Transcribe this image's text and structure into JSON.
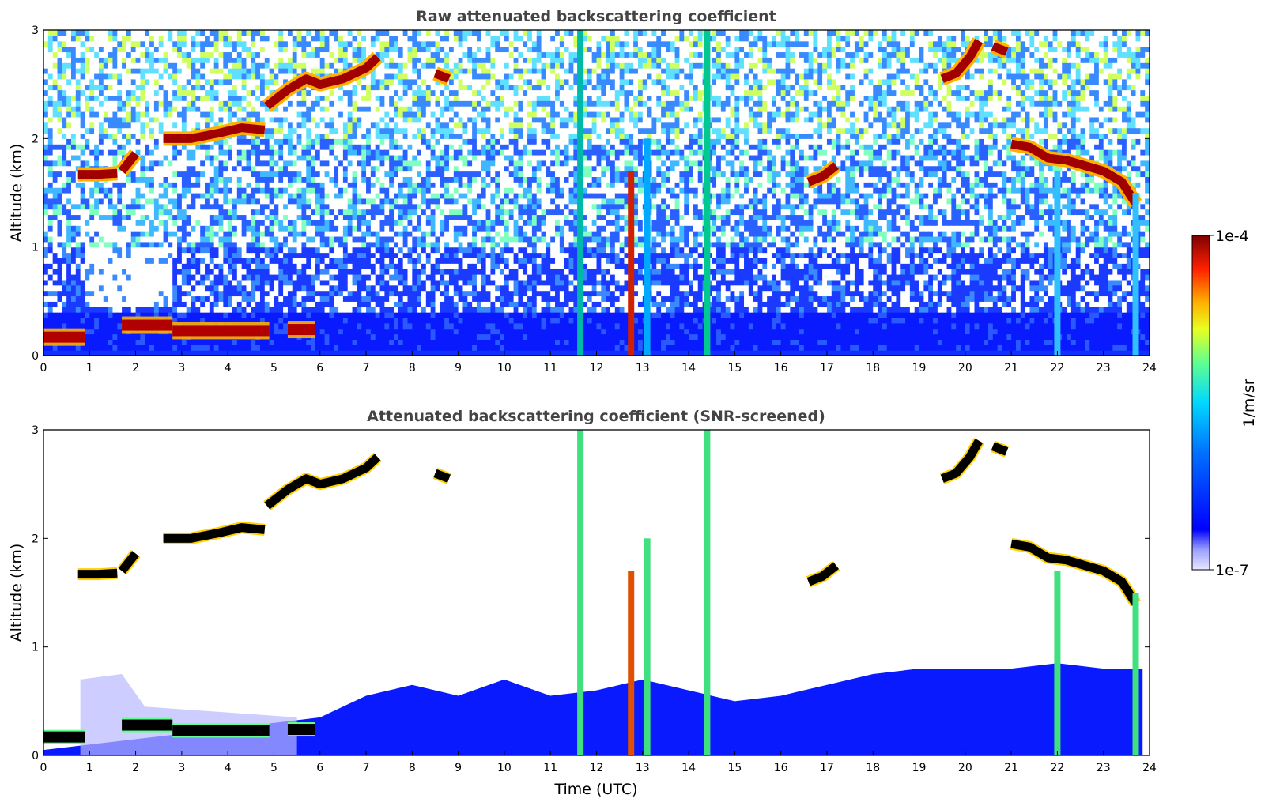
{
  "chart_data": [
    {
      "type": "heatmap",
      "title": "Raw attenuated backscattering coefficient",
      "xlabel": "",
      "ylabel": "Altitude (km)",
      "xlim": [
        0,
        24
      ],
      "ylim": [
        0,
        3
      ],
      "x_ticks": [
        "0",
        "1",
        "2",
        "3",
        "4",
        "5",
        "6",
        "7",
        "8",
        "9",
        "10",
        "11",
        "12",
        "13",
        "14",
        "15",
        "16",
        "17",
        "18",
        "19",
        "20",
        "21",
        "22",
        "23",
        "24"
      ],
      "y_ticks": [
        "0",
        "1",
        "2",
        "3"
      ],
      "background": "noise",
      "surface_layer": {
        "segments": [
          {
            "t0": 0.0,
            "t1": 0.9,
            "alt": 0.17
          },
          {
            "t0": 1.7,
            "t1": 2.8,
            "alt": 0.28
          },
          {
            "t0": 2.8,
            "t1": 4.9,
            "alt": 0.23
          },
          {
            "t0": 5.3,
            "t1": 5.9,
            "alt": 0.24
          }
        ]
      },
      "cloud_layers": [
        {
          "x": [
            0.75,
            1.2,
            1.6
          ],
          "y": [
            1.67,
            1.67,
            1.68
          ]
        },
        {
          "x": [
            1.7,
            1.85,
            2.0
          ],
          "y": [
            1.7,
            1.78,
            1.86
          ]
        },
        {
          "x": [
            2.6,
            3.2,
            3.8,
            4.3,
            4.8
          ],
          "y": [
            2.0,
            2.0,
            2.05,
            2.1,
            2.08
          ]
        },
        {
          "x": [
            4.85,
            5.3,
            5.7,
            6.0,
            6.5,
            7.0,
            7.25
          ],
          "y": [
            2.3,
            2.45,
            2.55,
            2.5,
            2.55,
            2.65,
            2.75
          ]
        },
        {
          "x": [
            8.5,
            8.8
          ],
          "y": [
            2.6,
            2.55
          ]
        },
        {
          "x": [
            19.5,
            19.8,
            20.1,
            20.3
          ],
          "y": [
            2.55,
            2.6,
            2.75,
            2.9
          ]
        },
        {
          "x": [
            20.6,
            20.9
          ],
          "y": [
            2.85,
            2.8
          ]
        },
        {
          "x": [
            21.0,
            21.4,
            21.8,
            22.2,
            22.6,
            23.0,
            23.4,
            23.7
          ],
          "y": [
            1.95,
            1.92,
            1.82,
            1.8,
            1.75,
            1.7,
            1.6,
            1.4
          ]
        },
        {
          "x": [
            16.6,
            16.9,
            17.2
          ],
          "y": [
            1.6,
            1.65,
            1.75
          ]
        }
      ],
      "precip_columns": [
        {
          "t": 11.65,
          "top": 3.0,
          "color": "#00b8a8"
        },
        {
          "t": 12.75,
          "top": 1.7,
          "color": "#d02000"
        },
        {
          "t": 13.1,
          "top": 2.0,
          "color": "#00a8ff"
        },
        {
          "t": 14.4,
          "top": 3.0,
          "color": "#00c890"
        },
        {
          "t": 22.0,
          "top": 1.7,
          "color": "#30c0ff"
        },
        {
          "t": 23.7,
          "top": 1.5,
          "color": "#30c0ff"
        }
      ]
    },
    {
      "type": "heatmap",
      "title": "Attenuated backscattering coefficient (SNR-screened)",
      "xlabel": "Time (UTC)",
      "ylabel": "Altitude (km)",
      "xlim": [
        0,
        24
      ],
      "ylim": [
        0,
        3
      ],
      "x_ticks": [
        "0",
        "1",
        "2",
        "3",
        "4",
        "5",
        "6",
        "7",
        "8",
        "9",
        "10",
        "11",
        "12",
        "13",
        "14",
        "15",
        "16",
        "17",
        "18",
        "19",
        "20",
        "21",
        "22",
        "23",
        "24"
      ],
      "y_ticks": [
        "0",
        "1",
        "2",
        "3"
      ],
      "background": "white",
      "boundary_layer": [
        {
          "t": 0,
          "top": 0.05
        },
        {
          "t": 6,
          "top": 0.35
        },
        {
          "t": 7,
          "top": 0.55
        },
        {
          "t": 8,
          "top": 0.65
        },
        {
          "t": 9,
          "top": 0.55
        },
        {
          "t": 10,
          "top": 0.7
        },
        {
          "t": 11,
          "top": 0.55
        },
        {
          "t": 12,
          "top": 0.6
        },
        {
          "t": 13,
          "top": 0.7
        },
        {
          "t": 14,
          "top": 0.6
        },
        {
          "t": 15,
          "top": 0.5
        },
        {
          "t": 16,
          "top": 0.55
        },
        {
          "t": 17,
          "top": 0.65
        },
        {
          "t": 18,
          "top": 0.75
        },
        {
          "t": 19,
          "top": 0.8
        },
        {
          "t": 20,
          "top": 0.8
        },
        {
          "t": 21,
          "top": 0.8
        },
        {
          "t": 22,
          "top": 0.85
        },
        {
          "t": 23,
          "top": 0.8
        },
        {
          "t": 23.85,
          "top": 0.8
        }
      ]
    }
  ],
  "colorbar": {
    "min_label": "1e-7",
    "max_label": "1e-4",
    "label": "1/m/sr",
    "colormap": "jet"
  }
}
